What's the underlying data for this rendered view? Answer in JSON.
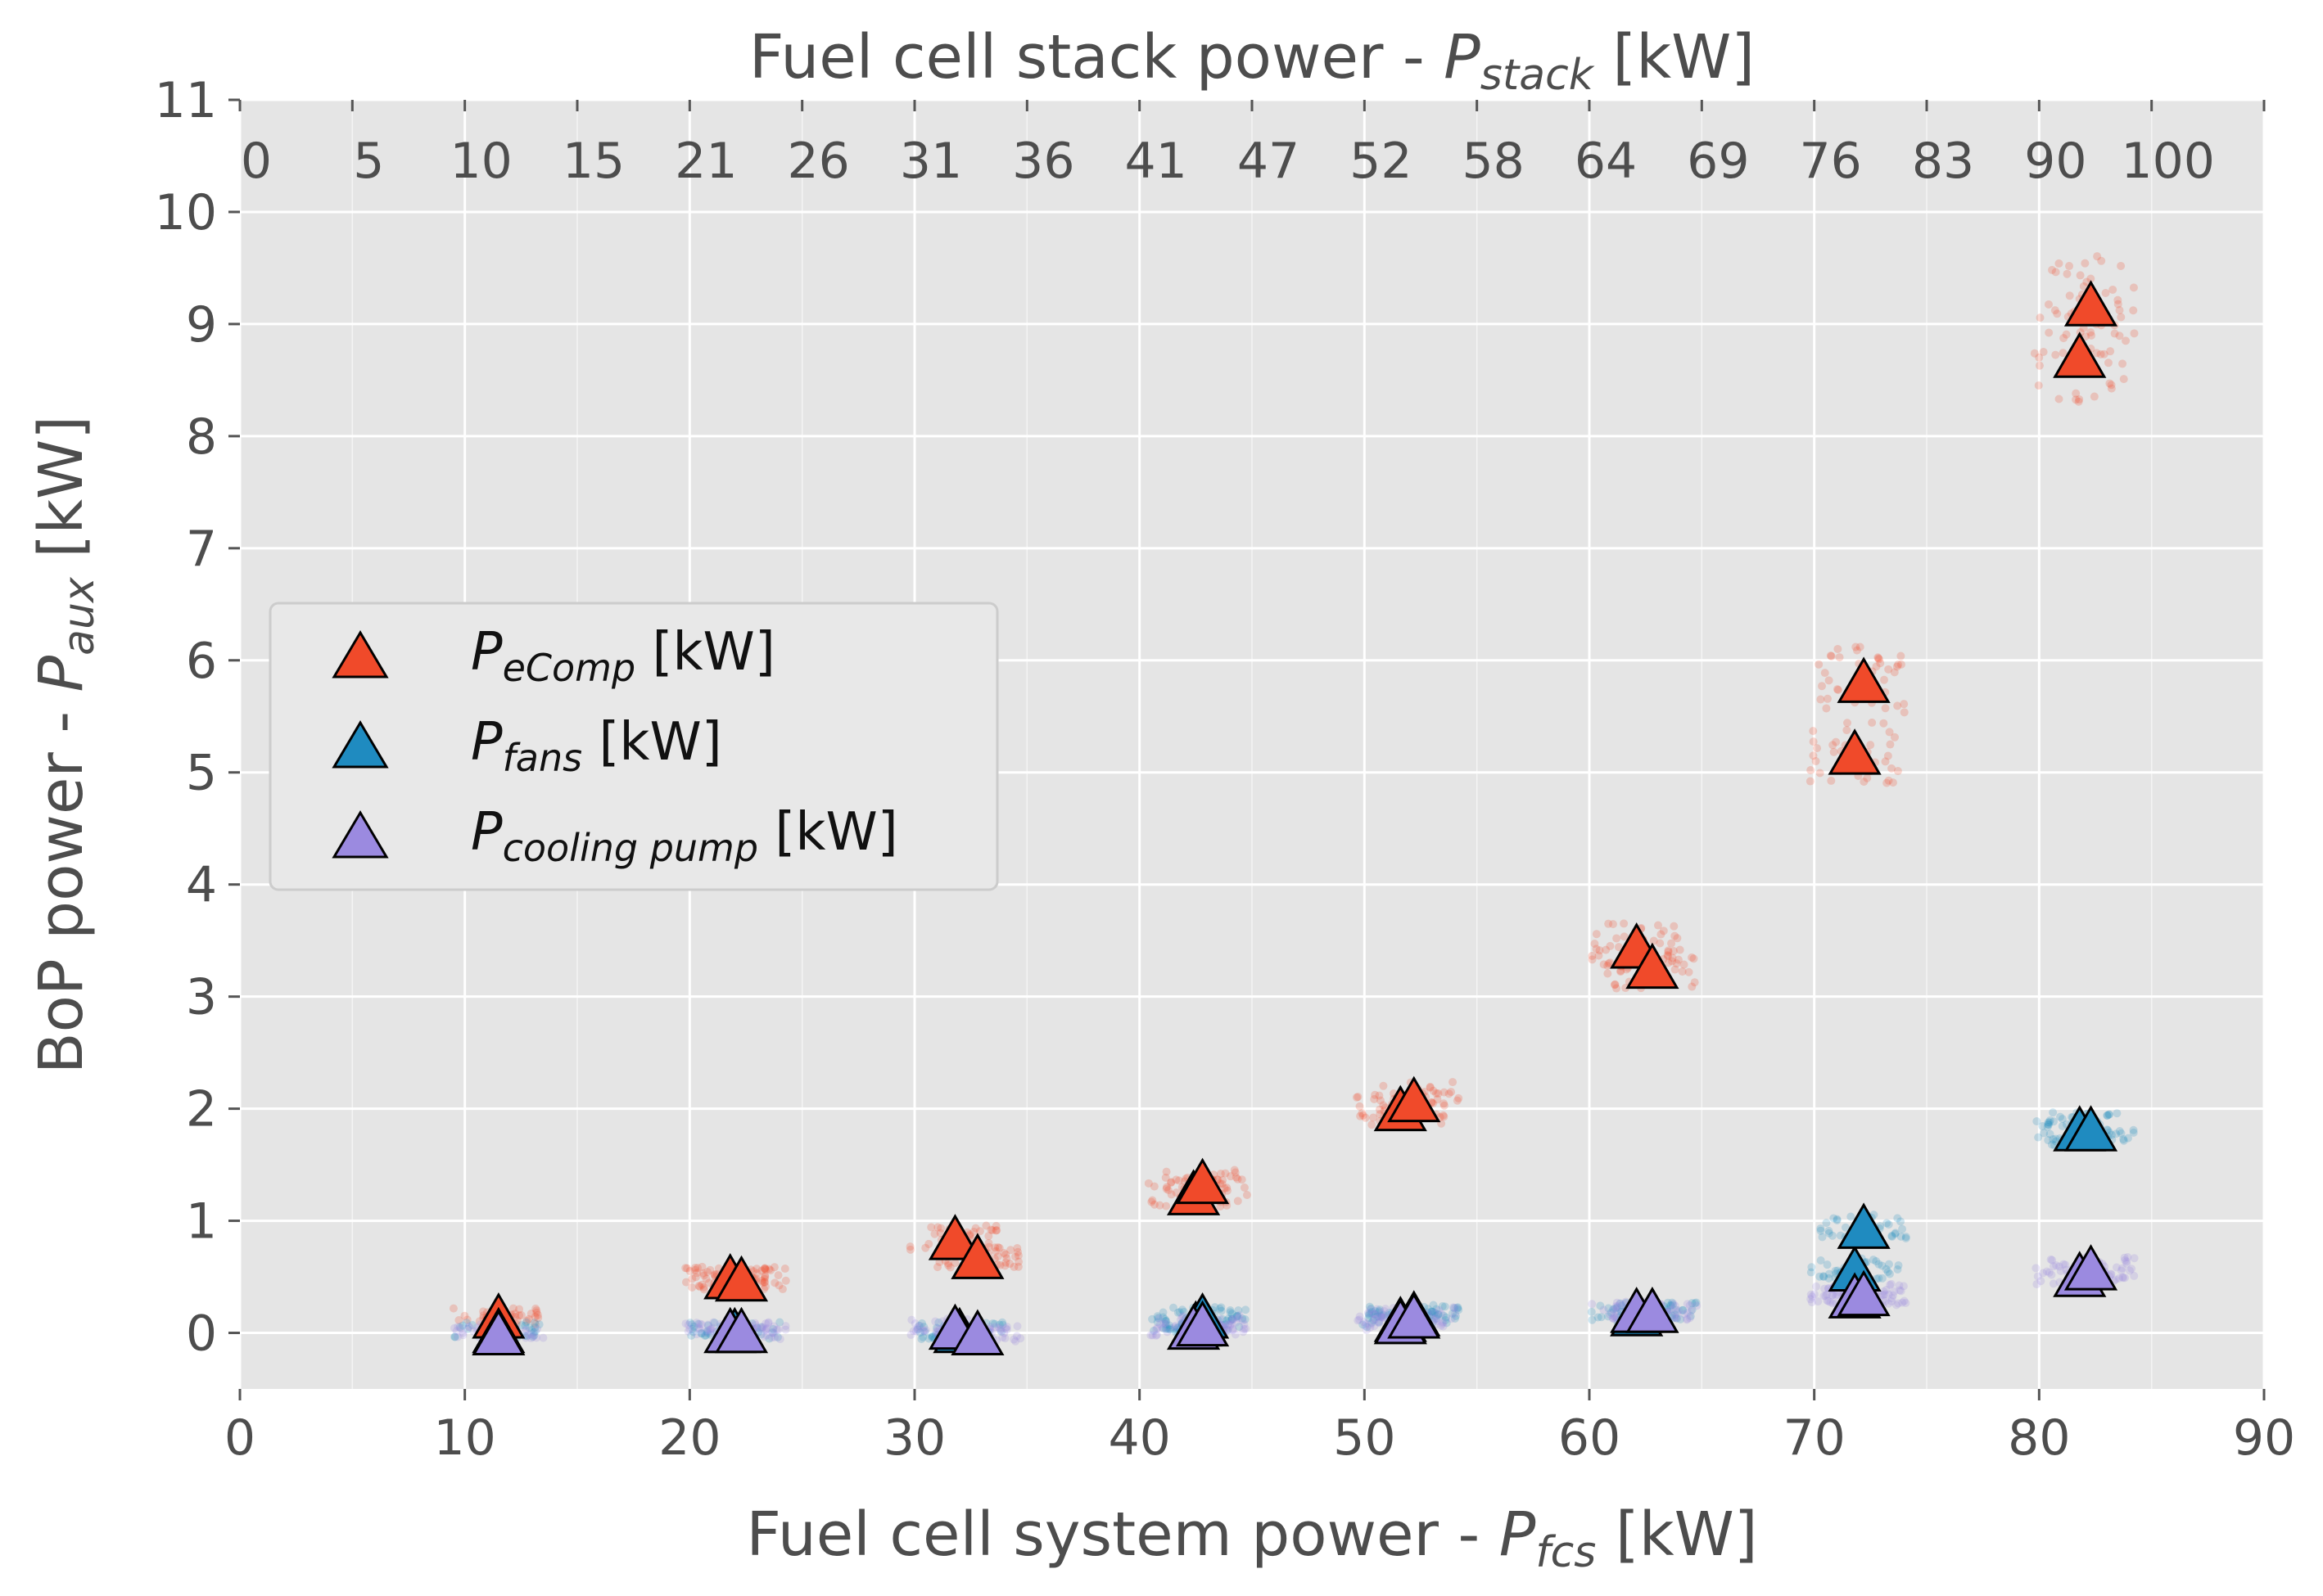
{
  "chart_data": {
    "type": "scatter",
    "title": "",
    "xlabel": "Fuel cell system power - ",
    "xlabel_symbol": "P",
    "xlabel_sub": "fcs",
    "xlabel_unit": " [kW]",
    "top_xlabel": "Fuel cell stack power - ",
    "top_xlabel_symbol": "P",
    "top_xlabel_sub": "stack",
    "top_xlabel_unit": " [kW]",
    "ylabel": "BoP power - ",
    "ylabel_symbol": "P",
    "ylabel_sub": "aux",
    "ylabel_unit": " [kW]",
    "xlim": [
      0,
      90
    ],
    "ylim": [
      -0.5,
      11
    ],
    "xticks": [
      0,
      10,
      20,
      30,
      40,
      50,
      60,
      70,
      80,
      90
    ],
    "xtick_labels": [
      "0",
      "10",
      "20",
      "30",
      "40",
      "50",
      "60",
      "70",
      "80",
      "90"
    ],
    "yticks": [
      0,
      1,
      2,
      3,
      4,
      5,
      6,
      7,
      8,
      9,
      10,
      11
    ],
    "ytick_labels": [
      "0",
      "1",
      "2",
      "3",
      "4",
      "5",
      "6",
      "7",
      "8",
      "9",
      "10",
      "11"
    ],
    "top_xticks": [
      0,
      5,
      10,
      15,
      20,
      25,
      30,
      35,
      40,
      45,
      50,
      55,
      60,
      65,
      70,
      75,
      80,
      85,
      90
    ],
    "top_tick_labels": [
      "0",
      "5",
      "10",
      "15",
      "21",
      "26",
      "31",
      "36",
      "41",
      "47",
      "52",
      "58",
      "64",
      "69",
      "76",
      "83",
      "90",
      "100",
      ""
    ],
    "grid": true,
    "legend_position": "center-left",
    "series": [
      {
        "name": "P_eComp [kW]",
        "legend_symbol": "P",
        "legend_sub": "eComp",
        "legend_unit": " [kW]",
        "color": "#f04a2a",
        "x": [
          11.5,
          21.8,
          22.3,
          31.8,
          32.8,
          42.4,
          42.8,
          51.6,
          52.2,
          62.1,
          62.8,
          71.8,
          72.2,
          81.8,
          82.3
        ],
        "y": [
          0.15,
          0.5,
          0.48,
          0.85,
          0.68,
          1.25,
          1.35,
          2.0,
          2.08,
          3.45,
          3.27,
          5.18,
          5.82,
          8.72,
          9.18
        ]
      },
      {
        "name": "P_fans [kW]",
        "legend_symbol": "P",
        "legend_sub": "fans",
        "legend_unit": " [kW]",
        "color": "#1f8bc0",
        "x": [
          11.5,
          22.0,
          32.0,
          42.5,
          42.8,
          51.6,
          52.2,
          62.1,
          62.8,
          71.8,
          72.2,
          81.8,
          82.3
        ],
        "y": [
          0.02,
          0.02,
          0.02,
          0.08,
          0.15,
          0.12,
          0.17,
          0.17,
          0.2,
          0.57,
          0.95,
          1.82,
          1.82
        ]
      },
      {
        "name": "P_cooling pump [kW]",
        "legend_symbol": "P",
        "legend_sub": "cooling pump",
        "legend_unit": " [kW]",
        "color": "#9b8ae0",
        "x": [
          11.5,
          21.8,
          22.3,
          31.8,
          32.8,
          42.4,
          42.8,
          51.6,
          52.2,
          62.1,
          62.8,
          71.8,
          72.2,
          81.8,
          82.3
        ],
        "y": [
          0.0,
          0.02,
          0.02,
          0.05,
          0.0,
          0.05,
          0.08,
          0.1,
          0.15,
          0.2,
          0.2,
          0.33,
          0.35,
          0.52,
          0.58
        ]
      }
    ]
  }
}
